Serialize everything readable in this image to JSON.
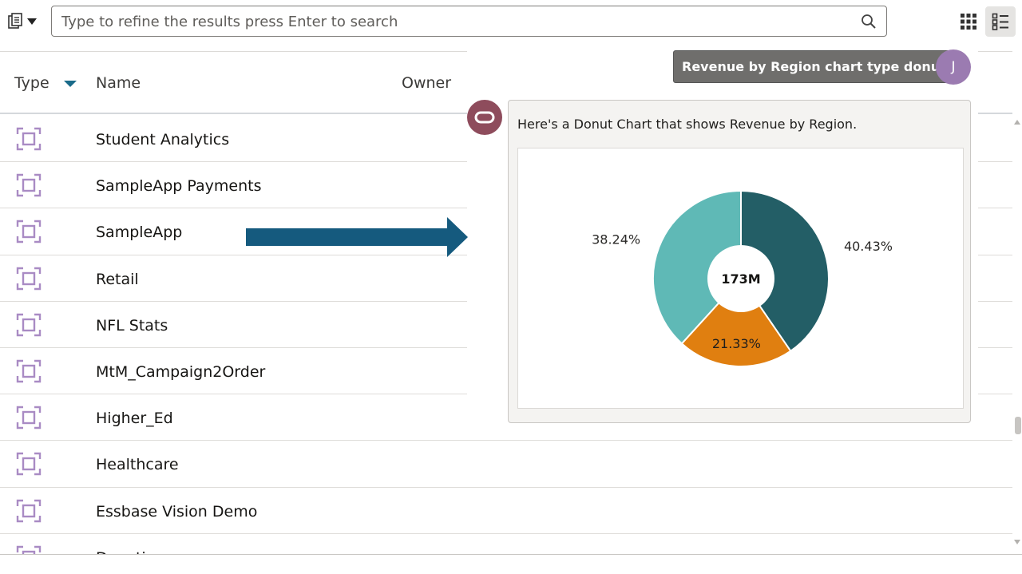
{
  "toolbar": {
    "source_icon": "data-source-menu-icon",
    "search_placeholder": "Type to refine the results press Enter to search",
    "search_icon": "search-icon",
    "grid_view_icon": "grid-view-icon",
    "list_view_icon": "list-view-icon"
  },
  "list": {
    "columns": {
      "type": "Type",
      "name": "Name",
      "owner": "Owner"
    },
    "sort_color": "#1a6b8a",
    "rows": [
      {
        "name": "Student Analytics"
      },
      {
        "name": "SampleApp Payments"
      },
      {
        "name": "SampleApp"
      },
      {
        "name": "Retail"
      },
      {
        "name": "NFL Stats"
      },
      {
        "name": "MtM_Campaign2Order"
      },
      {
        "name": "Higher_Ed"
      },
      {
        "name": "Healthcare"
      },
      {
        "name": "Essbase Vision Demo"
      },
      {
        "name": "Donations"
      }
    ],
    "row_icon": "subject-area-icon",
    "row_icon_color": "#a98bc4"
  },
  "assistant": {
    "user_message": "Revenue by Region chart type donut",
    "user_avatar": "J",
    "bot_avatar_icon": "oracle-icon",
    "bot_message": "Here's a Donut Chart that shows Revenue by Region."
  },
  "annotation": {
    "arrow_color": "#155a7e"
  },
  "chart_data": {
    "type": "pie",
    "donut": true,
    "center_label": "173M",
    "slices": [
      {
        "label": "40.43%",
        "value": 40.43,
        "color": "#235e66"
      },
      {
        "label": "21.33%",
        "value": 21.33,
        "color": "#e07f10"
      },
      {
        "label": "38.24%",
        "value": 38.24,
        "color": "#5fb9b6"
      }
    ]
  }
}
